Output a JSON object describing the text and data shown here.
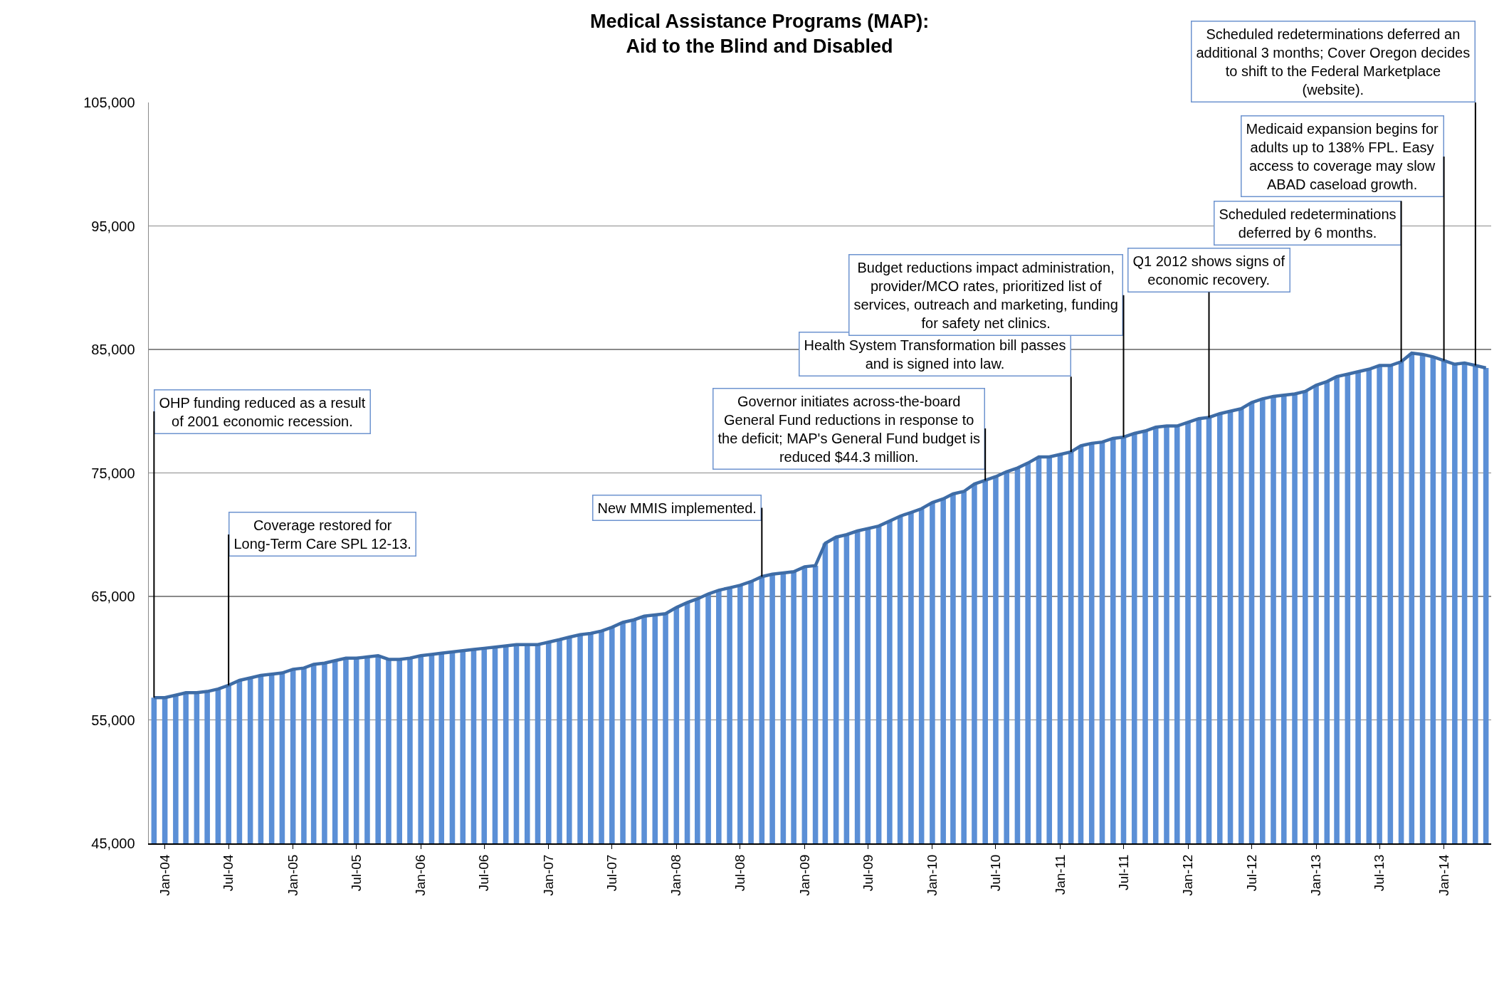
{
  "chart_data": {
    "type": "bar",
    "title": "Medical Assistance Programs (MAP):\nAid to the Blind and Disabled",
    "x": [
      "2003-12",
      "2004-01",
      "2004-02",
      "2004-03",
      "2004-04",
      "2004-05",
      "2004-06",
      "2004-07",
      "2004-08",
      "2004-09",
      "2004-10",
      "2004-11",
      "2004-12",
      "2005-01",
      "2005-02",
      "2005-03",
      "2005-04",
      "2005-05",
      "2005-06",
      "2005-07",
      "2005-08",
      "2005-09",
      "2005-10",
      "2005-11",
      "2005-12",
      "2006-01",
      "2006-02",
      "2006-03",
      "2006-04",
      "2006-05",
      "2006-06",
      "2006-07",
      "2006-08",
      "2006-09",
      "2006-10",
      "2006-11",
      "2006-12",
      "2007-01",
      "2007-02",
      "2007-03",
      "2007-04",
      "2007-05",
      "2007-06",
      "2007-07",
      "2007-08",
      "2007-09",
      "2007-10",
      "2007-11",
      "2007-12",
      "2008-01",
      "2008-02",
      "2008-03",
      "2008-04",
      "2008-05",
      "2008-06",
      "2008-07",
      "2008-08",
      "2008-09",
      "2008-10",
      "2008-11",
      "2008-12",
      "2009-01",
      "2009-02",
      "2009-03",
      "2009-04",
      "2009-05",
      "2009-06",
      "2009-07",
      "2009-08",
      "2009-09",
      "2009-10",
      "2009-11",
      "2009-12",
      "2010-01",
      "2010-02",
      "2010-03",
      "2010-04",
      "2010-05",
      "2010-06",
      "2010-07",
      "2010-08",
      "2010-09",
      "2010-10",
      "2010-11",
      "2010-12",
      "2011-01",
      "2011-02",
      "2011-03",
      "2011-04",
      "2011-05",
      "2011-06",
      "2011-07",
      "2011-08",
      "2011-09",
      "2011-10",
      "2011-11",
      "2011-12",
      "2012-01",
      "2012-02",
      "2012-03",
      "2012-04",
      "2012-05",
      "2012-06",
      "2012-07",
      "2012-08",
      "2012-09",
      "2012-10",
      "2012-11",
      "2012-12",
      "2013-01",
      "2013-02",
      "2013-03",
      "2013-04",
      "2013-05",
      "2013-06",
      "2013-07",
      "2013-08",
      "2013-09",
      "2013-10",
      "2013-11",
      "2013-12",
      "2014-01",
      "2014-02",
      "2014-03",
      "2014-04",
      "2014-05"
    ],
    "series": [
      {
        "color": "#5b8fd6",
        "values": [
          56800,
          56800,
          57000,
          57200,
          57200,
          57300,
          57500,
          57800,
          58200,
          58400,
          58600,
          58700,
          58800,
          59100,
          59200,
          59500,
          59600,
          59800,
          60000,
          60000,
          60100,
          60200,
          59900,
          59900,
          60000,
          60200,
          60300,
          60400,
          60500,
          60600,
          60700,
          60800,
          60900,
          61000,
          61100,
          61100,
          61100,
          61300,
          61500,
          61700,
          61900,
          62000,
          62200,
          62500,
          62900,
          63100,
          63400,
          63500,
          63600,
          64100,
          64500,
          64800,
          65200,
          65500,
          65700,
          65900,
          66200,
          66600,
          66800,
          66900,
          67000,
          67400,
          67500,
          69300,
          69800,
          70000,
          70300,
          70500,
          70700,
          71100,
          71500,
          71800,
          72100,
          72600,
          72900,
          73300,
          73500,
          74100,
          74400,
          74700,
          75100,
          75400,
          75800,
          76300,
          76300,
          76500,
          76700,
          77200,
          77400,
          77500,
          77800,
          77900,
          78200,
          78400,
          78700,
          78800,
          78800,
          79100,
          79400,
          79500,
          79800,
          80000,
          80200,
          80700,
          81000,
          81200,
          81300,
          81400,
          81600,
          82100,
          82400,
          82800,
          83000,
          83200,
          83400,
          83700,
          83700,
          84000,
          84700,
          84600,
          84400,
          84100,
          83800,
          83900,
          83700,
          83500
        ]
      },
      {
        "type": "line",
        "color": "#3e6ca6",
        "values": [
          56800,
          56800,
          57000,
          57200,
          57200,
          57300,
          57500,
          57800,
          58200,
          58400,
          58600,
          58700,
          58800,
          59100,
          59200,
          59500,
          59600,
          59800,
          60000,
          60000,
          60100,
          60200,
          59900,
          59900,
          60000,
          60200,
          60300,
          60400,
          60500,
          60600,
          60700,
          60800,
          60900,
          61000,
          61100,
          61100,
          61100,
          61300,
          61500,
          61700,
          61900,
          62000,
          62200,
          62500,
          62900,
          63100,
          63400,
          63500,
          63600,
          64100,
          64500,
          64800,
          65200,
          65500,
          65700,
          65900,
          66200,
          66600,
          66800,
          66900,
          67000,
          67400,
          67500,
          69300,
          69800,
          70000,
          70300,
          70500,
          70700,
          71100,
          71500,
          71800,
          72100,
          72600,
          72900,
          73300,
          73500,
          74100,
          74400,
          74700,
          75100,
          75400,
          75800,
          76300,
          76300,
          76500,
          76700,
          77200,
          77400,
          77500,
          77800,
          77900,
          78200,
          78400,
          78700,
          78800,
          78800,
          79100,
          79400,
          79500,
          79800,
          80000,
          80200,
          80700,
          81000,
          81200,
          81300,
          81400,
          81600,
          82100,
          82400,
          82800,
          83000,
          83200,
          83400,
          83700,
          83700,
          84000,
          84700,
          84600,
          84400,
          84100,
          83800,
          83900,
          83700,
          83500
        ]
      }
    ],
    "xlim": [
      "2003-11-16",
      "2014-05-16"
    ],
    "xticks": [
      {
        "value": "2004-01",
        "label": "Jan-04"
      },
      {
        "value": "2004-07",
        "label": "Jul-04"
      },
      {
        "value": "2005-01",
        "label": "Jan-05"
      },
      {
        "value": "2005-07",
        "label": "Jul-05"
      },
      {
        "value": "2006-01",
        "label": "Jan-06"
      },
      {
        "value": "2006-07",
        "label": "Jul-06"
      },
      {
        "value": "2007-01",
        "label": "Jan-07"
      },
      {
        "value": "2007-07",
        "label": "Jul-07"
      },
      {
        "value": "2008-01",
        "label": "Jan-08"
      },
      {
        "value": "2008-07",
        "label": "Jul-08"
      },
      {
        "value": "2009-01",
        "label": "Jan-09"
      },
      {
        "value": "2009-07",
        "label": "Jul-09"
      },
      {
        "value": "2010-01",
        "label": "Jan-10"
      },
      {
        "value": "2010-07",
        "label": "Jul-10"
      },
      {
        "value": "2011-01",
        "label": "Jan-11"
      },
      {
        "value": "2011-07",
        "label": "Jul-11"
      },
      {
        "value": "2012-01",
        "label": "Jan-12"
      },
      {
        "value": "2012-07",
        "label": "Jul-12"
      },
      {
        "value": "2013-01",
        "label": "Jan-13"
      },
      {
        "value": "2013-07",
        "label": "Jul-13"
      },
      {
        "value": "2014-01",
        "label": "Jan-14"
      }
    ],
    "ylim": [
      45000,
      105000
    ],
    "yticks": [
      {
        "value": 45000,
        "label": "45,000"
      },
      {
        "value": 55000,
        "label": "55,000"
      },
      {
        "value": 65000,
        "label": "65,000"
      },
      {
        "value": 75000,
        "label": "75,000"
      },
      {
        "value": 85000,
        "label": "85,000"
      },
      {
        "value": 95000,
        "label": "95,000"
      },
      {
        "value": 105000,
        "label": "105,000"
      }
    ],
    "grid": "y",
    "annotations": [
      {
        "text": "OHP funding reduced as a result of 2001 economic recession.",
        "x": "2003-12",
        "y": 56800
      },
      {
        "text": "Coverage restored for Long-Term Care SPL 12-13.",
        "x": "2004-07",
        "y": 57800
      },
      {
        "text": "New MMIS implemented.",
        "x": "2008-09",
        "y": 66600
      },
      {
        "text": "Governor initiates across-the-board General Fund reductions in response to the deficit; MAP's General Fund budget is reduced $44.3 million.",
        "x": "2010-06",
        "y": 74400
      },
      {
        "text": "Health System Transformation bill passes and is signed into law.",
        "x": "2011-02",
        "y": 76700
      },
      {
        "text": "Budget reductions impact administration, provider/MCO rates, prioritized list of services, outreach and marketing, funding for safety net clinics.",
        "x": "2011-07",
        "y": 77900
      },
      {
        "text": "Q1 2012 shows signs of economic recovery.",
        "x": "2012-03",
        "y": 79500
      },
      {
        "text": "Scheduled redeterminations deferred by 6 months.",
        "x": "2013-09",
        "y": 84000
      },
      {
        "text": "Medicaid expansion begins for adults up to 138% FPL. Easy access to coverage may slow ABAD caseload growth.",
        "x": "2014-01",
        "y": 84100
      },
      {
        "text": "Scheduled redeterminations deferred an additional 3 months; Cover Oregon decides to shift to the Federal Marketplace (website).",
        "x": "2014-04",
        "y": 83700
      }
    ]
  }
}
